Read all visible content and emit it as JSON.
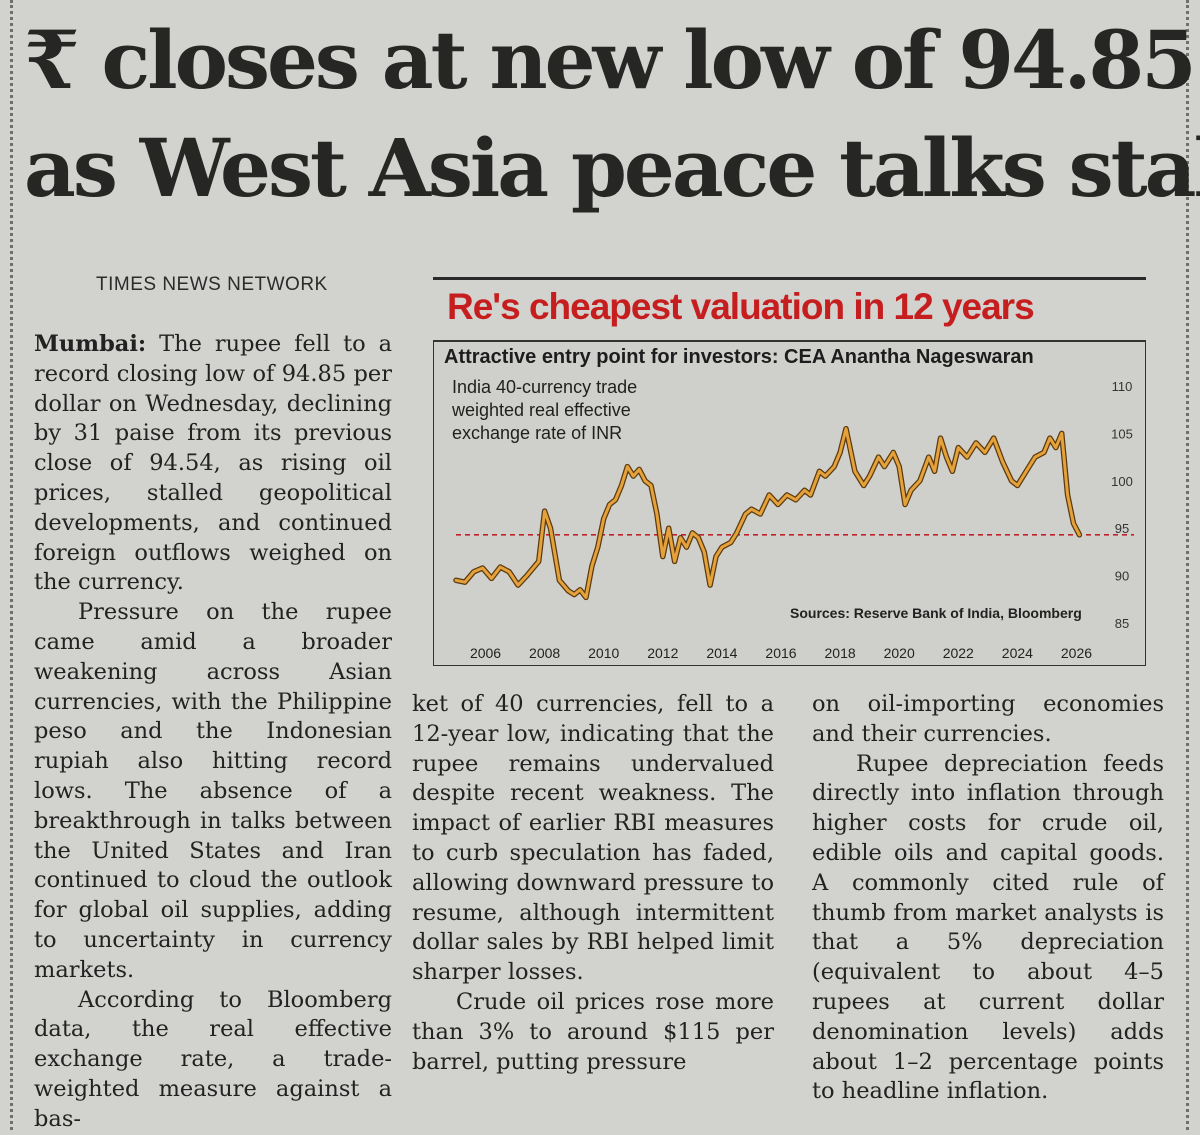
{
  "headline": {
    "line1": "₹ closes at new low of 94.85",
    "line2": "as West Asia peace talks stall"
  },
  "byline": "TIMES NEWS NETWORK",
  "article": {
    "dateline": "Mumbai:",
    "col1": [
      "The rupee fell to a record closing low of 94.85 per dollar on Wednesday, declining by 31 paise from its previous close of 94.54, as rising oil prices, stalled geopolitical developments, and continued foreign outflows weighed on the currency.",
      "Pressure on the rupee came amid a broader weakening across Asian currencies, with the Philippine peso and the Indonesian rupiah also hitting record lows. The absence of a breakthrough in talks between the United States and Iran continued to cloud the outlook for global oil supplies, adding to uncertainty in currency markets.",
      "According to Bloomberg data, the real effective exchange rate, a trade-weighted measure against a bas-"
    ],
    "col2": [
      "ket of 40 currencies, fell to a 12-year low, indicating that the rupee remains undervalued despite recent weakness. The impact of earlier RBI measures to curb speculation has faded, allowing downward pressure to resume, although intermittent dollar sales by RBI helped limit sharper losses.",
      "Crude oil prices rose more than 3% to around $115 per barrel, putting pressure"
    ],
    "col3": [
      "on oil-importing economies and their currencies.",
      "Rupee depreciation feeds directly into inflation through higher costs for crude oil, edible oils and capital goods. A commonly cited rule of thumb from market analysts is that a 5% depreciation (equivalent to about 4–5 rupees at current dollar denomination levels) adds about 1–2 percentage points to headline inflation."
    ]
  },
  "chart_data": {
    "type": "line",
    "title": "Re's cheapest valuation in 12 years",
    "subtitle": "Attractive entry point for investors: CEA Anantha Nageswaran",
    "description": "India 40-currency trade weighted real effective exchange rate of INR",
    "source": "Sources: Reserve Bank of India, Bloomberg",
    "x_ticks": [
      "2006",
      "2008",
      "2010",
      "2012",
      "2014",
      "2016",
      "2018",
      "2020",
      "2022",
      "2024",
      "2026"
    ],
    "y_ticks": [
      "110",
      "105",
      "100",
      "95",
      "90",
      "85"
    ],
    "xlim": [
      2005,
      2027
    ],
    "ylim": [
      85,
      110
    ],
    "reference_line": 94.3,
    "colors": {
      "line": "#e6a23a",
      "line_outline": "#5b3a10",
      "reference": "#c2222a"
    },
    "series": [
      {
        "values": [
          [
            2005.0,
            89.5
          ],
          [
            2005.3,
            89.3
          ],
          [
            2005.6,
            90.4
          ],
          [
            2005.9,
            90.8
          ],
          [
            2006.2,
            89.7
          ],
          [
            2006.5,
            90.9
          ],
          [
            2006.8,
            90.4
          ],
          [
            2007.1,
            89.0
          ],
          [
            2007.4,
            90.0
          ],
          [
            2007.8,
            91.5
          ],
          [
            2008.0,
            96.8
          ],
          [
            2008.2,
            95.0
          ],
          [
            2008.5,
            89.5
          ],
          [
            2008.8,
            88.4
          ],
          [
            2009.0,
            88.0
          ],
          [
            2009.2,
            88.5
          ],
          [
            2009.4,
            87.7
          ],
          [
            2009.6,
            91.0
          ],
          [
            2009.8,
            93.0
          ],
          [
            2010.0,
            96.0
          ],
          [
            2010.2,
            97.5
          ],
          [
            2010.4,
            98.0
          ],
          [
            2010.6,
            99.5
          ],
          [
            2010.8,
            101.5
          ],
          [
            2011.0,
            100.5
          ],
          [
            2011.2,
            101.2
          ],
          [
            2011.4,
            100.0
          ],
          [
            2011.6,
            99.5
          ],
          [
            2011.8,
            96.5
          ],
          [
            2012.0,
            92.0
          ],
          [
            2012.2,
            95.0
          ],
          [
            2012.4,
            91.5
          ],
          [
            2012.6,
            94.0
          ],
          [
            2012.8,
            93.0
          ],
          [
            2013.0,
            94.5
          ],
          [
            2013.2,
            94.0
          ],
          [
            2013.4,
            92.5
          ],
          [
            2013.6,
            89.0
          ],
          [
            2013.8,
            92.0
          ],
          [
            2014.0,
            93.0
          ],
          [
            2014.3,
            93.5
          ],
          [
            2014.5,
            94.5
          ],
          [
            2014.8,
            96.5
          ],
          [
            2015.0,
            97.0
          ],
          [
            2015.3,
            96.5
          ],
          [
            2015.6,
            98.5
          ],
          [
            2015.9,
            97.5
          ],
          [
            2016.2,
            98.5
          ],
          [
            2016.5,
            98.0
          ],
          [
            2016.8,
            99.0
          ],
          [
            2017.0,
            98.5
          ],
          [
            2017.3,
            101.0
          ],
          [
            2017.5,
            100.5
          ],
          [
            2017.8,
            101.5
          ],
          [
            2018.0,
            103.0
          ],
          [
            2018.2,
            105.5
          ],
          [
            2018.5,
            101.0
          ],
          [
            2018.8,
            99.5
          ],
          [
            2019.0,
            100.5
          ],
          [
            2019.3,
            102.5
          ],
          [
            2019.5,
            101.5
          ],
          [
            2019.8,
            103.0
          ],
          [
            2020.0,
            101.5
          ],
          [
            2020.2,
            97.5
          ],
          [
            2020.4,
            99.0
          ],
          [
            2020.7,
            100.0
          ],
          [
            2021.0,
            102.5
          ],
          [
            2021.2,
            101.0
          ],
          [
            2021.4,
            104.5
          ],
          [
            2021.6,
            102.5
          ],
          [
            2021.8,
            101.0
          ],
          [
            2022.0,
            103.5
          ],
          [
            2022.3,
            102.5
          ],
          [
            2022.6,
            104.0
          ],
          [
            2022.9,
            103.0
          ],
          [
            2023.2,
            104.5
          ],
          [
            2023.5,
            102.0
          ],
          [
            2023.8,
            100.0
          ],
          [
            2024.0,
            99.5
          ],
          [
            2024.3,
            101.0
          ],
          [
            2024.6,
            102.5
          ],
          [
            2024.9,
            103.0
          ],
          [
            2025.1,
            104.5
          ],
          [
            2025.3,
            103.5
          ],
          [
            2025.5,
            105.0
          ],
          [
            2025.7,
            98.5
          ],
          [
            2025.9,
            95.5
          ],
          [
            2026.1,
            94.3
          ]
        ]
      }
    ]
  }
}
